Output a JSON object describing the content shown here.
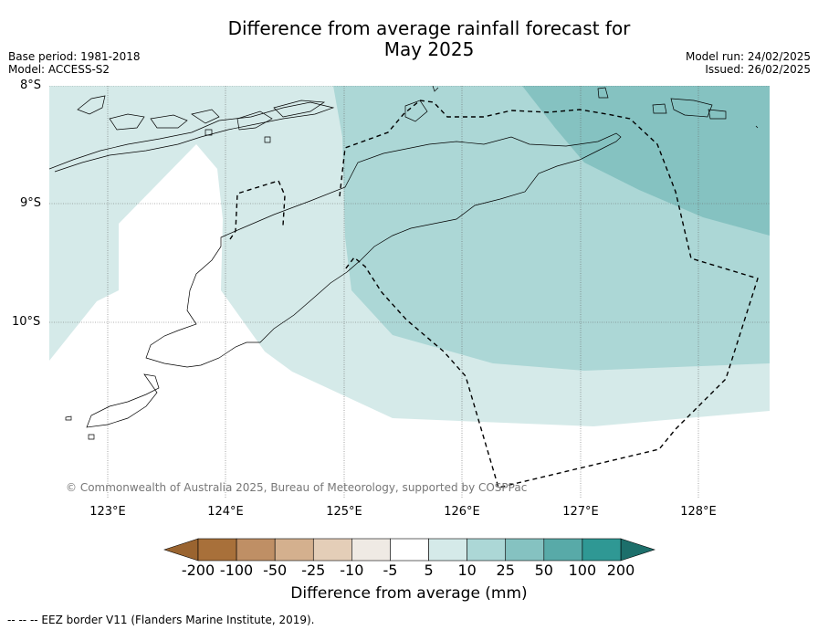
{
  "header": {
    "title_line1": "Difference from average rainfall forecast for",
    "title_line2": "May 2025",
    "base_period": "Base period: 1981-2018",
    "model": "Model: ACCESS-S2",
    "model_run": "Model run: 24/02/2025",
    "issued": "Issued: 26/02/2025"
  },
  "map": {
    "lat_labels": [
      "8°S",
      "9°S",
      "10°S"
    ],
    "lon_labels": [
      "123°E",
      "124°E",
      "125°E",
      "126°E",
      "127°E",
      "128°E"
    ],
    "copyright": "© Commonwealth of Australia 2025, Bureau of Meteorology, supported by COSPPac"
  },
  "colorbar": {
    "title": "Difference from average (mm)",
    "labels": [
      "-200",
      "-100",
      "-50",
      "-25",
      "-10",
      "-5",
      "5",
      "10",
      "25",
      "50",
      "100",
      "200"
    ],
    "colors": [
      "#a8703a",
      "#bf8f65",
      "#d4b08e",
      "#e4ceb8",
      "#efeae4",
      "#ffffff",
      "#d5eae9",
      "#acd7d6",
      "#85c2c1",
      "#58aaa8",
      "#2f9894",
      "#1f7873"
    ],
    "under_color": "#9a6430",
    "over_color": "#1d6f6b"
  },
  "footer": {
    "note": "--  --  -- EEZ border V11 (Flanders Marine Institute, 2019)."
  }
}
